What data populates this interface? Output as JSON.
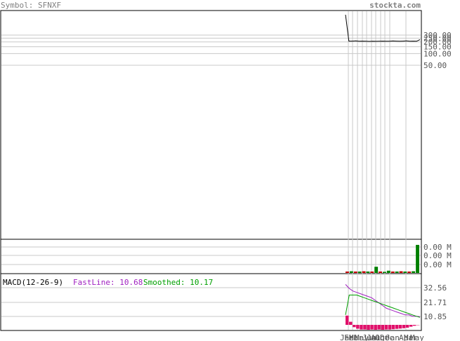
{
  "header": {
    "symbol_label": "Symbol: SFNXF",
    "site": "stockta.com"
  },
  "colors": {
    "gray_text": "#808080",
    "grid": "#c8c8c8",
    "price_line": "#000000",
    "volume_green": "#008000",
    "volume_red": "#c00000",
    "fast_line": "#a020c0",
    "smoothed": "#00a000",
    "histogram": "#e0106a",
    "label_text": "#555555"
  },
  "chart_data": [
    {
      "type": "line",
      "panel": "price",
      "y_scale": "log",
      "y_tick_labels": [
        "300.00",
        "250.00",
        "200.00",
        "150.00",
        "100.00",
        "50.00"
      ],
      "y_tick_values": [
        300,
        250,
        200,
        150,
        100,
        50
      ],
      "series": [
        {
          "values": [
            1000,
            210,
            210,
            212,
            208,
            210,
            208,
            206,
            208,
            207,
            209,
            210,
            208,
            209,
            211,
            210,
            208,
            210,
            212,
            209,
            210,
            208,
            230
          ]
        }
      ]
    },
    {
      "type": "bar",
      "panel": "volume",
      "y_tick_labels": [
        "0.00 M",
        "0.00 M",
        "0.00 M"
      ],
      "values": [
        0.05,
        0.06,
        0.05,
        0.05,
        0.06,
        0.05,
        0.05,
        0.22,
        0.05,
        0.04,
        0.08,
        0.05,
        0.05,
        0.06,
        0.05,
        0.05,
        0.06,
        1.0
      ],
      "value_colors": [
        "red",
        "green",
        "red",
        "green",
        "red",
        "green",
        "red",
        "green",
        "red",
        "green",
        "green",
        "red",
        "green",
        "red",
        "green",
        "red",
        "green",
        "green"
      ]
    },
    {
      "type": "line",
      "panel": "macd",
      "legend": {
        "title": "MACD(12-26-9)",
        "fast_label": "FastLine: 10.68",
        "smoothed_label": "Smoothed: 10.17"
      },
      "y_tick_labels": [
        "32.56",
        "21.71",
        "10.85"
      ],
      "y_tick_values": [
        32.56,
        21.71,
        10.85
      ],
      "x_tick_labels": [
        "Jan",
        "Feb",
        "Mar",
        "May",
        "Jun",
        "Jul",
        "Aug",
        "Oct",
        "Dec",
        "Jan",
        "Apr",
        "Mar",
        "May"
      ],
      "series": [
        {
          "name": "FastLine",
          "values": [
            35,
            32,
            30,
            29,
            28,
            27,
            26,
            25,
            23,
            21,
            19,
            17,
            16,
            15,
            14,
            13,
            12,
            12,
            11,
            11,
            10.68
          ]
        },
        {
          "name": "Smoothed",
          "values": [
            12,
            27,
            27,
            27,
            26,
            25,
            24,
            23,
            22,
            21,
            20,
            19,
            18,
            17,
            16,
            15,
            14,
            13,
            12,
            11,
            10.17
          ]
        }
      ],
      "histogram": [
        6.0,
        2.0,
        -1.5,
        -2.5,
        -3.0,
        -3.0,
        -3.2,
        -3.0,
        -3.2,
        -3.0,
        -3.2,
        -3.0,
        -3.0,
        -2.8,
        -2.6,
        -2.4,
        -2.2,
        -1.8,
        -1.2,
        -0.6,
        -0.2
      ]
    }
  ]
}
